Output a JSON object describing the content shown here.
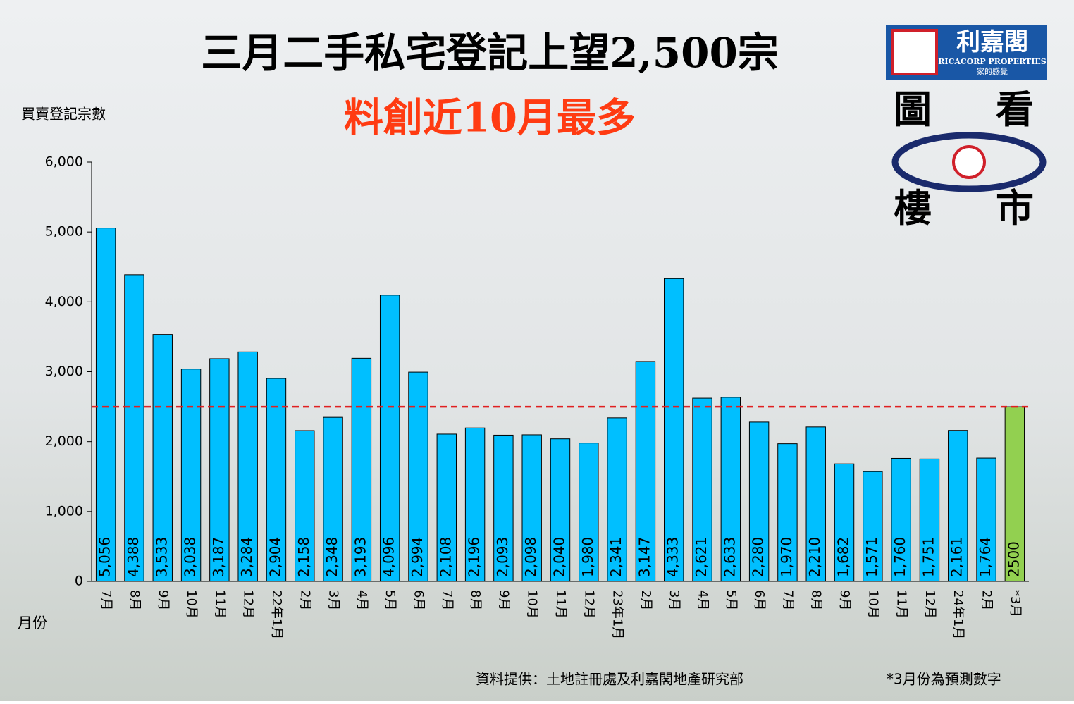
{
  "chart_data": {
    "type": "bar",
    "title": "三月二手私宅登記上望2,500宗",
    "subtitle": "料創近10月最多",
    "y_label": "買賣登記宗數",
    "x_label": "月份",
    "source": "資料提供：土地註冊處及利嘉閣地產研究部",
    "note": "*3月份為預測數字",
    "logo": {
      "name": "利嘉閣",
      "english": "RICACORP PROPERTIES",
      "slogan": "家的感覺",
      "corner_words": [
        "圖",
        "看",
        "樓",
        "市"
      ]
    },
    "categories": [
      "7月",
      "8月",
      "9月",
      "10月",
      "11月",
      "12月",
      "22年1月",
      "2月",
      "3月",
      "4月",
      "5月",
      "6月",
      "7月",
      "8月",
      "9月",
      "10月",
      "11月",
      "12月",
      "23年1月",
      "2月",
      "3月",
      "4月",
      "5月",
      "6月",
      "7月",
      "8月",
      "9月",
      "10月",
      "11月",
      "12月",
      "24年1月",
      "2月",
      "*3月"
    ],
    "values": [
      5056,
      4388,
      3533,
      3038,
      3187,
      3284,
      2904,
      2158,
      2348,
      3193,
      4096,
      2994,
      2108,
      2196,
      2093,
      2098,
      2040,
      1980,
      2341,
      3147,
      4333,
      2621,
      2633,
      2280,
      1970,
      2210,
      1682,
      1571,
      1760,
      1751,
      2161,
      1764,
      2500
    ],
    "value_labels": [
      "5,056",
      "4,388",
      "3,533",
      "3,038",
      "3,187",
      "3,284",
      "2,904",
      "2,158",
      "2,348",
      "3,193",
      "4,096",
      "2,994",
      "2,108",
      "2,196",
      "2,093",
      "2,098",
      "2,040",
      "1,980",
      "2,341",
      "3,147",
      "4,333",
      "2,621",
      "2,633",
      "2,280",
      "1,970",
      "2,210",
      "1,682",
      "1,571",
      "1,760",
      "1,751",
      "2,161",
      "1,764",
      "2500"
    ],
    "colors": [
      "#00bfff",
      "#00bfff",
      "#00bfff",
      "#00bfff",
      "#00bfff",
      "#00bfff",
      "#00bfff",
      "#00bfff",
      "#00bfff",
      "#00bfff",
      "#00bfff",
      "#00bfff",
      "#00bfff",
      "#00bfff",
      "#00bfff",
      "#00bfff",
      "#00bfff",
      "#00bfff",
      "#00bfff",
      "#00bfff",
      "#00bfff",
      "#00bfff",
      "#00bfff",
      "#00bfff",
      "#00bfff",
      "#00bfff",
      "#00bfff",
      "#00bfff",
      "#00bfff",
      "#00bfff",
      "#00bfff",
      "#00bfff",
      "#92d050"
    ],
    "reference_line": {
      "value": 2500,
      "color": "#e02020"
    },
    "ylim": [
      0,
      6000
    ],
    "yticks": [
      0,
      {
        "value": 1000,
        "label": "1,000"
      },
      {
        "value": 2000,
        "label": "2,000"
      },
      {
        "value": 3000,
        "label": "3,000"
      },
      {
        "value": 4000,
        "label": "4,000"
      },
      {
        "value": 5000,
        "label": "5,000"
      },
      {
        "value": 6000,
        "label": "6,000"
      }
    ]
  }
}
